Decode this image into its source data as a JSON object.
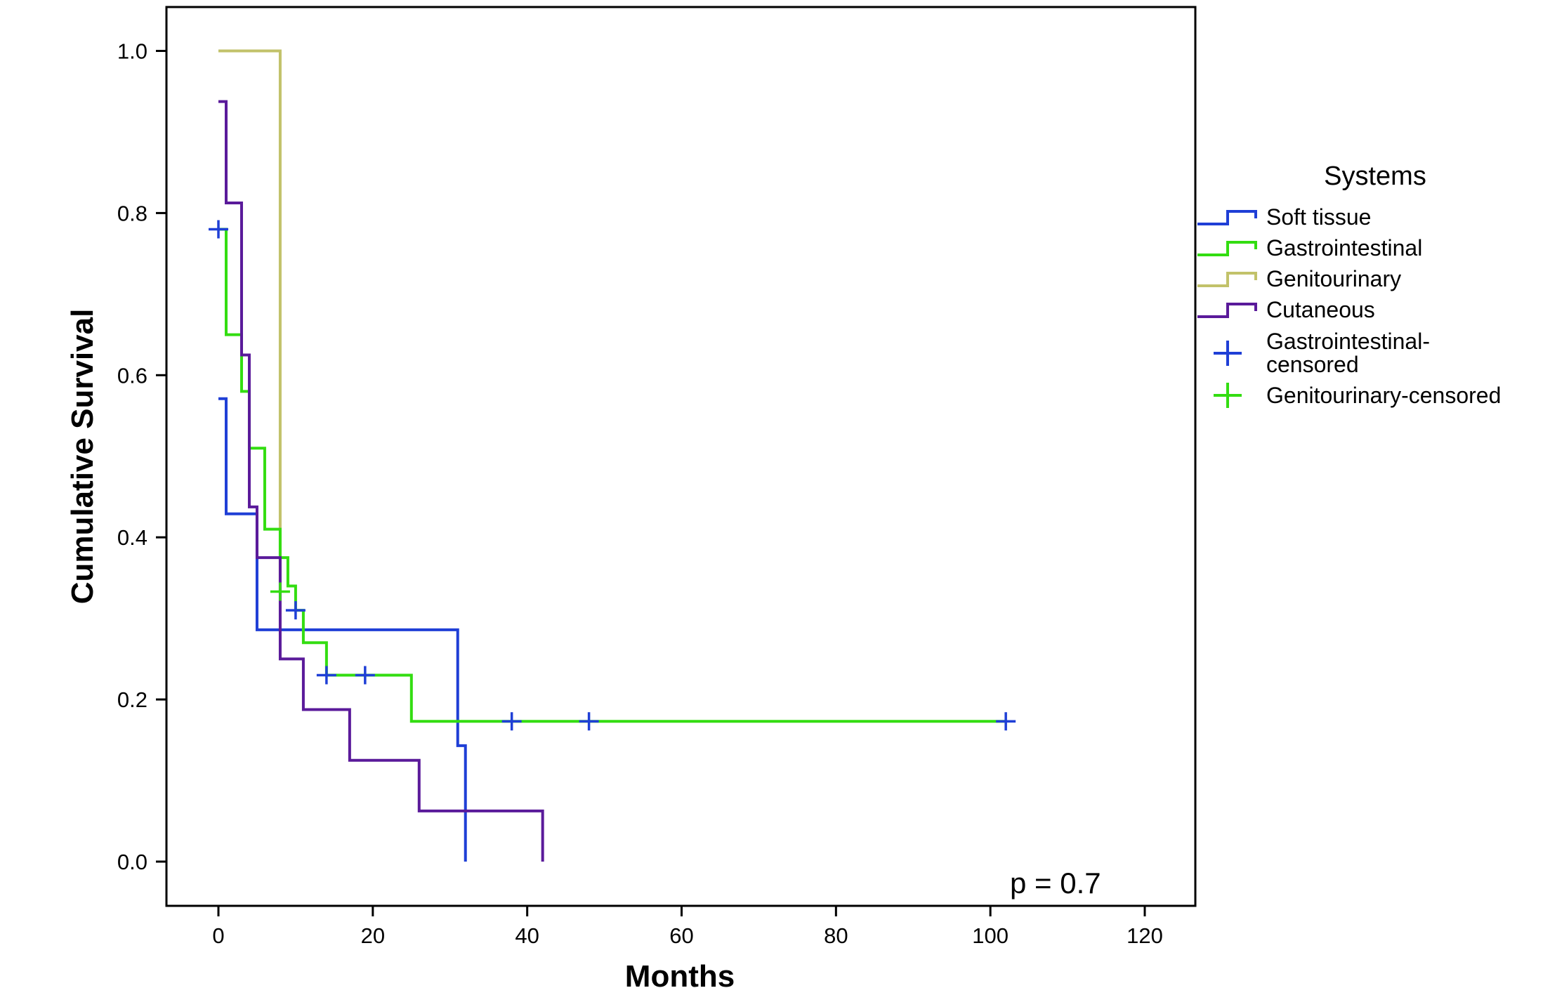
{
  "chart_data": {
    "type": "line",
    "subtype": "kaplan-meier step",
    "xlabel": "Months",
    "ylabel": "Cumulative Survival",
    "xlim": [
      -7,
      126
    ],
    "ylim": [
      -0.055,
      1.055
    ],
    "xticks": [
      0,
      20,
      40,
      60,
      80,
      100,
      120
    ],
    "yticks": [
      "0.0",
      "0.2",
      "0.4",
      "0.6",
      "0.8",
      "1.0"
    ],
    "grid": false,
    "annotation": "p = 0.7",
    "legend": {
      "title": "Systems",
      "placement": "right",
      "entries": [
        {
          "label": "Soft tissue",
          "type": "line",
          "color": "#1f3fd6"
        },
        {
          "label": "Gastrointestinal",
          "type": "line",
          "color": "#33dd11"
        },
        {
          "label": "Genitourinary",
          "type": "line",
          "color": "#c2c26a"
        },
        {
          "label": "Cutaneous",
          "type": "line",
          "color": "#5a1a9a"
        },
        {
          "label": "Gastrointestinal-censored",
          "type": "marker",
          "color": "#1f3fd6"
        },
        {
          "label": "Genitourinary-censored",
          "type": "marker",
          "color": "#33dd11"
        }
      ]
    },
    "series": [
      {
        "name": "Genitourinary",
        "color": "#c2c26a",
        "steps": [
          [
            0,
            1.0
          ],
          [
            8,
            0.333
          ]
        ],
        "end": 8
      },
      {
        "name": "Soft tissue",
        "color": "#1f3fd6",
        "steps": [
          [
            0,
            0.571
          ],
          [
            1,
            0.429
          ],
          [
            5,
            0.286
          ],
          [
            31,
            0.143
          ],
          [
            32,
            0.0
          ]
        ],
        "end": 32
      },
      {
        "name": "Gastrointestinal",
        "color": "#33dd11",
        "steps": [
          [
            0,
            0.78
          ],
          [
            1,
            0.65
          ],
          [
            3,
            0.58
          ],
          [
            4,
            0.51
          ],
          [
            6,
            0.41
          ],
          [
            8,
            0.375
          ],
          [
            9,
            0.34
          ],
          [
            10,
            0.31
          ],
          [
            11,
            0.27
          ],
          [
            14,
            0.23
          ],
          [
            25,
            0.173
          ]
        ],
        "end": 102
      },
      {
        "name": "Cutaneous",
        "color": "#5a1a9a",
        "steps": [
          [
            0,
            0.9375
          ],
          [
            1,
            0.8125
          ],
          [
            3,
            0.625
          ],
          [
            4,
            0.4375
          ],
          [
            5,
            0.375
          ],
          [
            8,
            0.25
          ],
          [
            11,
            0.1875
          ],
          [
            17,
            0.125
          ],
          [
            26,
            0.0625
          ],
          [
            42,
            0.0
          ]
        ],
        "end": 42
      }
    ],
    "censored": [
      {
        "name": "Gastrointestinal-censored",
        "color": "#1f3fd6",
        "points": [
          [
            0,
            0.78
          ],
          [
            10,
            0.31
          ],
          [
            14,
            0.23
          ],
          [
            19,
            0.23
          ],
          [
            38,
            0.173
          ],
          [
            48,
            0.173
          ],
          [
            102,
            0.173
          ]
        ]
      },
      {
        "name": "Genitourinary-censored",
        "color": "#33dd11",
        "points": [
          [
            8,
            0.333
          ]
        ]
      }
    ]
  }
}
